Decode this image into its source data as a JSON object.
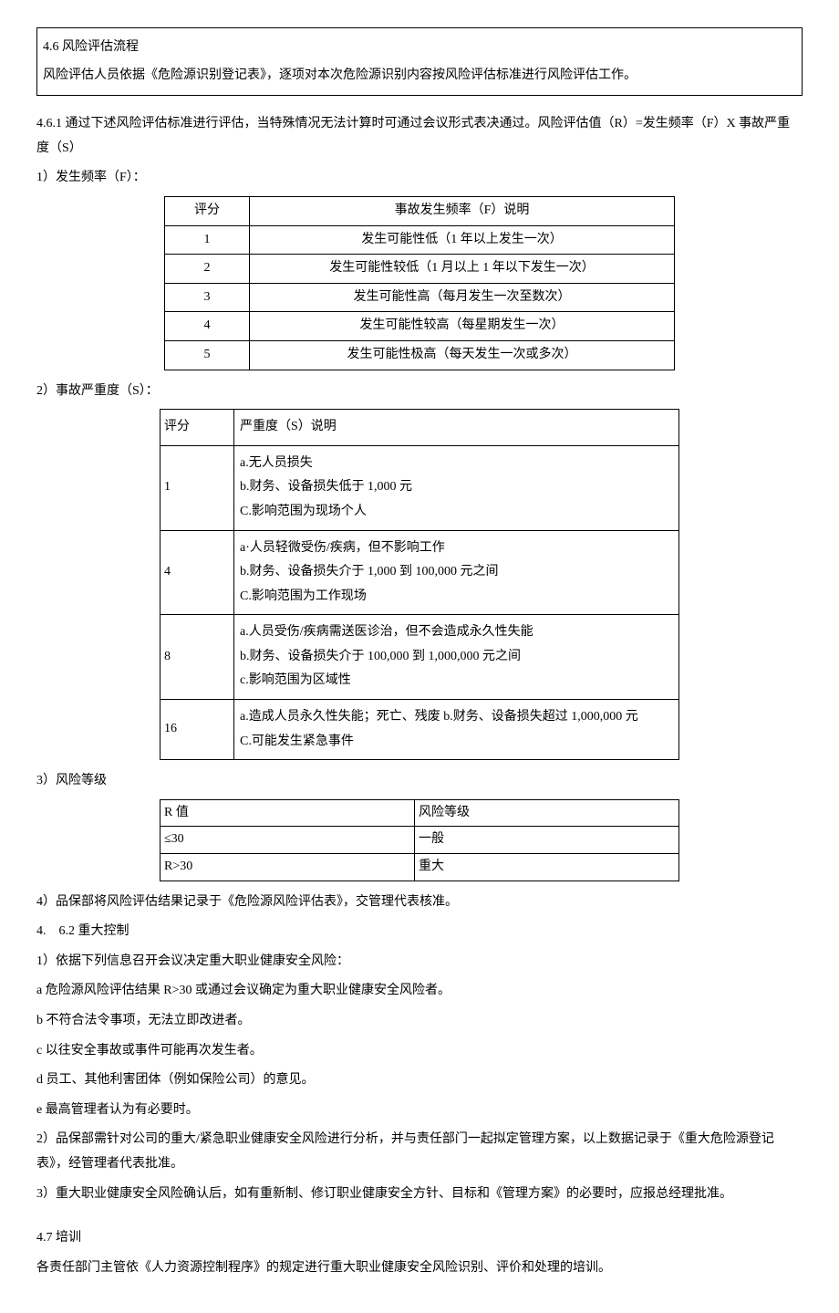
{
  "header": {
    "title": "4.6 风险评估流程",
    "desc": "风险评估人员依据《危险源识别登记表》，逐项对本次危险源识别内容按风险评估标准进行风险评估工作。"
  },
  "para_461": "4.6.1 通过下述风险评估标准进行评估，当特殊情况无法计算时可通过会议形式表决通过。风险评估值（R）=发生频率（F）X 事故严重度（S）",
  "freq": {
    "label": "1）发生频率（F）：",
    "header": {
      "c1": "评分",
      "c2": "事故发生频率（F）说明"
    },
    "rows": [
      {
        "score": "1",
        "desc": "发生可能性低（1 年以上发生一次）"
      },
      {
        "score": "2",
        "desc": "发生可能性较低（1 月以上 1 年以下发生一次）"
      },
      {
        "score": "3",
        "desc": "发生可能性高（每月发生一次至数次）"
      },
      {
        "score": "4",
        "desc": "发生可能性较高（每星期发生一次）"
      },
      {
        "score": "5",
        "desc": "发生可能性极高（每天发生一次或多次）"
      }
    ]
  },
  "sev": {
    "label": "2）事故严重度（S）：",
    "header": {
      "c1": "评分",
      "c2": "严重度（S）说明"
    },
    "rows": [
      {
        "score": "1",
        "a": "a.无人员损失",
        "b": "b.财务、设备损失低于 1,000 元",
        "c": "C.影响范围为现场个人"
      },
      {
        "score": "4",
        "a": "a·人员轻微受伤/疾病，但不影响工作",
        "b": "b.财务、设备损失介于 1,000 到 100,000 元之间",
        "c": "C.影响范围为工作现场"
      },
      {
        "score": "8",
        "a": "a.人员受伤/疾病需送医诊治，但不会造成永久性失能",
        "b": "b.财务、设备损失介于 100,000 到 1,000,000 元之间",
        "c": "c.影响范围为区域性"
      },
      {
        "score": "16",
        "a": "a.造成人员永久性失能；死亡、残废 b.财务、设备损失超过 1,000,000 元",
        "b": "C.可能发生紧急事件",
        "c": ""
      }
    ]
  },
  "risk": {
    "label": "3）风险等级",
    "header": {
      "c1": "R 值",
      "c2": "风险等级"
    },
    "rows": [
      {
        "r": "≤30",
        "level": "一般"
      },
      {
        "r": "R>30",
        "level": "重大"
      }
    ]
  },
  "para4": "4）品保部将风险评估结果记录于《危险源风险评估表》，交管理代表核准。",
  "sec462": {
    "title": "4.　6.2 重大控制",
    "p1": "1）依据下列信息召开会议决定重大职业健康安全风险：",
    "a": "a 危险源风险评估结果 R>30 或通过会议确定为重大职业健康安全风险者。",
    "b": "b 不符合法令事项，无法立即改进者。",
    "c": "c 以往安全事故或事件可能再次发生者。",
    "d": "d 员工、其他利害团体（例如保险公司）的意见。",
    "e": "e 最高管理者认为有必要时。",
    "p2": "2）品保部需针对公司的重大/紧急职业健康安全风险进行分析，并与责任部门一起拟定管理方案，以上数据记录于《重大危险源登记表》，经管理者代表批准。",
    "p3": "3）重大职业健康安全风险确认后，如有重新制、修订职业健康安全方针、目标和《管理方案》的必要时，应报总经理批准。"
  },
  "sec47": {
    "title": "4.7 培训",
    "p1": "各责任部门主管依《人力资源控制程序》的规定进行重大职业健康安全风险识别、评价和处理的培训。"
  }
}
